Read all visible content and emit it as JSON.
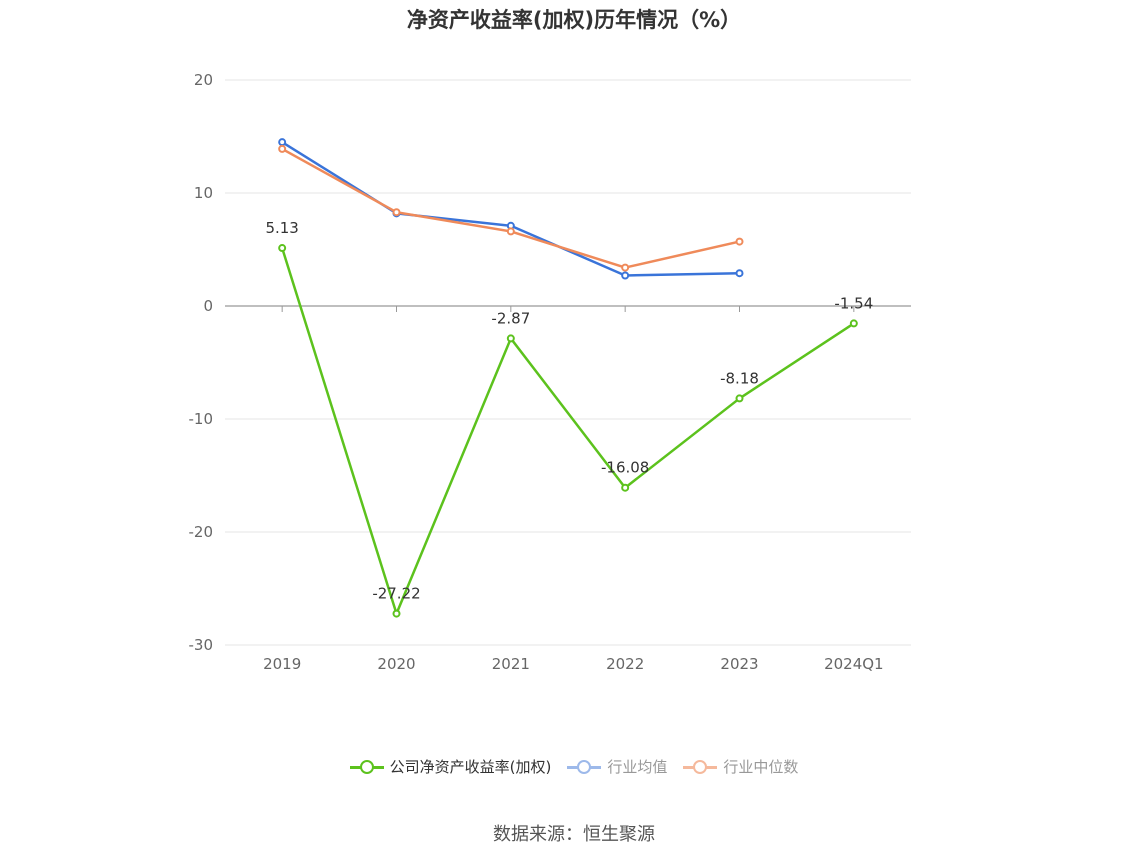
{
  "chart_data": {
    "type": "line",
    "title": "净资产收益率(加权)历年情况（%）",
    "categories": [
      "2019",
      "2020",
      "2021",
      "2022",
      "2023",
      "2024Q1"
    ],
    "ylim": [
      -30,
      20
    ],
    "yticks": [
      20,
      10,
      0,
      -10,
      -20,
      -30
    ],
    "grid": true,
    "legend_position": "bottom",
    "series": [
      {
        "name": "公司净资产收益率(加权)",
        "color": "#5cc21d",
        "values": [
          5.13,
          -27.22,
          -2.87,
          -16.08,
          -8.18,
          -1.54
        ],
        "labels": [
          "5.13",
          "-27.22",
          "-2.87",
          "-16.08",
          "-8.18",
          "-1.54"
        ]
      },
      {
        "name": "行业均值",
        "color": "#3a74d9",
        "values": [
          14.5,
          8.2,
          7.1,
          2.7,
          2.9,
          null
        ]
      },
      {
        "name": "行业中位数",
        "color": "#ef8a5a",
        "values": [
          13.9,
          8.3,
          6.6,
          3.4,
          5.7,
          null
        ]
      }
    ]
  },
  "legend": {
    "items": [
      {
        "label": "公司净资产收益率(加权)",
        "color": "#5cc21d",
        "text_color": "#333333"
      },
      {
        "label": "行业均值",
        "color": "#9db9ea",
        "text_color": "#999999"
      },
      {
        "label": "行业中位数",
        "color": "#f5b99c",
        "text_color": "#999999"
      }
    ]
  },
  "source": "数据来源：恒生聚源"
}
